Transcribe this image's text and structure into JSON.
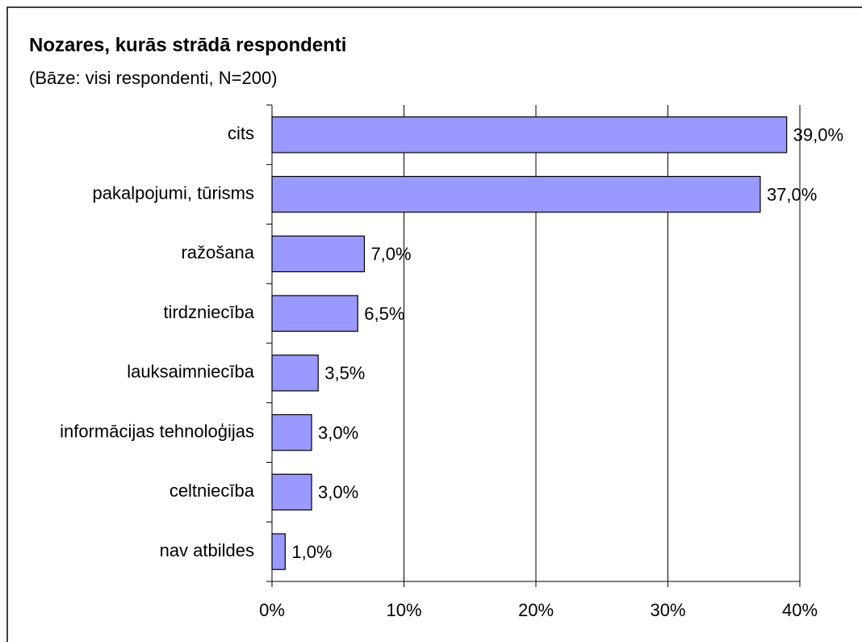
{
  "chart_data": {
    "type": "bar",
    "orientation": "horizontal",
    "title": "Nozares, kurās strādā respondenti",
    "subtitle": "(Bāze: visi respondenti, N=200)",
    "categories": [
      "cits",
      "pakalpojumi, tūrisms",
      "ražošana",
      "tirdzniecība",
      "lauksaimniecība",
      "informācijas tehnoloģijas",
      "celtniecība",
      "nav atbildes"
    ],
    "values": [
      39,
      37,
      7,
      6.5,
      3.5,
      3,
      3,
      1
    ],
    "value_labels": [
      "39,0%",
      "37,0%",
      "7,0%",
      "6,5%",
      "3,5%",
      "3,0%",
      "3,0%",
      "1,0%"
    ],
    "color": "#9999ff",
    "xlim": [
      0,
      40
    ],
    "xticks": [
      {
        "value": 0,
        "label": "0%"
      },
      {
        "value": 10,
        "label": "10%"
      },
      {
        "value": 20,
        "label": "20%"
      },
      {
        "value": 30,
        "label": "30%"
      },
      {
        "value": 40,
        "label": "40%"
      }
    ],
    "grid": true
  }
}
